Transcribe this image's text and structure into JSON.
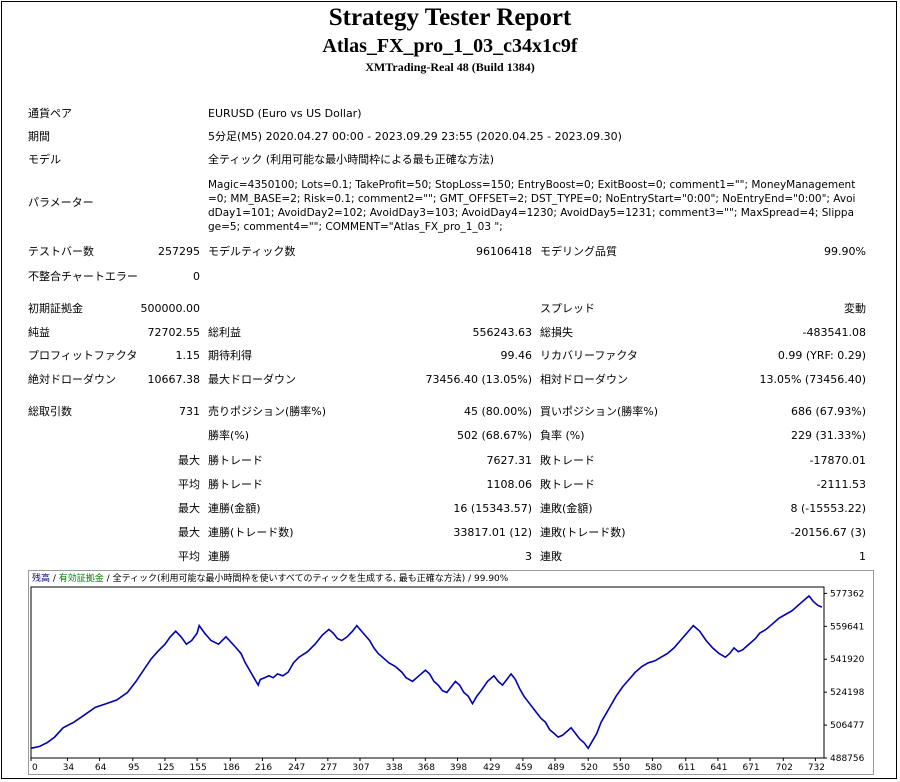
{
  "header": {
    "title": "Strategy Tester Report",
    "ea_name": "Atlas_FX_pro_1_03_c34x1c9f",
    "server": "XMTrading-Real 48 (Build 1384)"
  },
  "info": {
    "symbol_label": "通貨ペア",
    "symbol_value": "EURUSD (Euro vs US Dollar)",
    "period_label": "期間",
    "period_value": "5分足(M5) 2020.04.27 00:00 - 2023.09.29 23:55 (2020.04.25 - 2023.09.30)",
    "model_label": "モデル",
    "model_value": "全ティック (利用可能な最小時間枠による最も正確な方法)",
    "params_label": "パラメーター",
    "params_value": "Magic=4350100; Lots=0.1; TakeProfit=50; StopLoss=150; EntryBoost=0; ExitBoost=0; comment1=\"\"; MoneyManagement=0; MM_BASE=2; Risk=0.1; comment2=\"\"; GMT_OFFSET=2; DST_TYPE=0; NoEntryStart=\"0:00\"; NoEntryEnd=\"0:00\"; AvoidDay1=101; AvoidDay2=102; AvoidDay3=103; AvoidDay4=1230; AvoidDay5=1231; comment3=\"\"; MaxSpread=4; Slippage=5; comment4=\"\"; COMMENT=\"Atlas_FX_pro_1_03 \";"
  },
  "stats": {
    "bars_label": "テストバー数",
    "bars_value": "257295",
    "ticks_label": "モデルティック数",
    "ticks_value": "96106418",
    "quality_label": "モデリング品質",
    "quality_value": "99.90%",
    "mismatch_label": "不整合チャートエラー",
    "mismatch_value": "0",
    "deposit_label": "初期証拠金",
    "deposit_value": "500000.00",
    "spread_label": "スプレッド",
    "spread_value": "変動",
    "netprofit_label": "純益",
    "netprofit_value": "72702.55",
    "grossprofit_label": "総利益",
    "grossprofit_value": "556243.63",
    "grossloss_label": "総損失",
    "grossloss_value": "-483541.08",
    "pf_label": "プロフィットファクタ",
    "pf_value": "1.15",
    "payoff_label": "期待利得",
    "payoff_value": "99.46",
    "recovery_label": "リカバリーファクタ",
    "recovery_value": "0.99 (YRF: 0.29)",
    "absdd_label": "絶対ドローダウン",
    "absdd_value": "10667.38",
    "maxdd_label": "最大ドローダウン",
    "maxdd_value": "73456.40 (13.05%)",
    "reldd_label": "相対ドローダウン",
    "reldd_value": "13.05% (73456.40)",
    "trades_label": "総取引数",
    "trades_value": "731",
    "short_label": "売りポジション(勝率%)",
    "short_value": "45 (80.00%)",
    "long_label": "買いポジション(勝率%)",
    "long_value": "686 (67.93%)",
    "winrate_label": "勝率(%)",
    "winrate_value": "502 (68.67%)",
    "lossrate_label": "負率 (%)",
    "lossrate_value": "229 (31.33%)",
    "max_label": "最大",
    "avg_label": "平均",
    "largest_win_label": "勝トレード",
    "largest_win_value": "7627.31",
    "largest_loss_label": "敗トレード",
    "largest_loss_value": "-17870.01",
    "avg_win_label": "勝トレード",
    "avg_win_value": "1108.06",
    "avg_loss_label": "敗トレード",
    "avg_loss_value": "-2111.53",
    "max_consec_wins_money_label": "連勝(金額)",
    "max_consec_wins_money_value": "16 (15343.57)",
    "max_consec_losses_money_label": "連敗(金額)",
    "max_consec_losses_money_value": "8 (-15553.22)",
    "max_consec_wins_count_label": "連勝(トレード数)",
    "max_consec_wins_count_value": "33817.01 (12)",
    "max_consec_losses_count_label": "連敗(トレード数)",
    "max_consec_losses_count_value": "-20156.67 (3)",
    "avg_consec_wins_label": "連勝",
    "avg_consec_wins_value": "3",
    "avg_consec_losses_label": "連敗",
    "avg_consec_losses_value": "1"
  },
  "chart_data": {
    "type": "line",
    "legend": {
      "balance": "残高",
      "sep1": " / ",
      "equity": "有効証拠金",
      "sep2": " / ",
      "model": "全ティック(利用可能な最小時間枠を使いすべてのティックを生成する, 最も正確な方法)",
      "sep3": " / ",
      "quality": "99.90%"
    },
    "colors": {
      "balance": "#00008b",
      "equity": "#008000",
      "line": "#0000b4"
    },
    "x_ticks": [
      "0",
      "34",
      "64",
      "95",
      "125",
      "155",
      "186",
      "216",
      "247",
      "277",
      "307",
      "338",
      "368",
      "398",
      "429",
      "459",
      "489",
      "520",
      "550",
      "580",
      "611",
      "641",
      "671",
      "702",
      "732"
    ],
    "y_ticks": [
      "577362",
      "559641",
      "541920",
      "524198",
      "506477",
      "488756"
    ],
    "xlim": [
      0,
      740
    ],
    "ylim": [
      488756,
      580800
    ],
    "series": [
      {
        "x": [
          0,
          8,
          15,
          22,
          30,
          40,
          50,
          60,
          70,
          80,
          90,
          98,
          105,
          112,
          118,
          125,
          130,
          135,
          140,
          145,
          150,
          155,
          157,
          162,
          168,
          175,
          182,
          190,
          196,
          200,
          205,
          210,
          212,
          214,
          218,
          222,
          226,
          230,
          235,
          240,
          245,
          250,
          258,
          265,
          272,
          278,
          282,
          286,
          290,
          295,
          300,
          304,
          310,
          316,
          320,
          324,
          328,
          334,
          340,
          346,
          350,
          356,
          362,
          368,
          372,
          376,
          380,
          384,
          388,
          392,
          396,
          400,
          404,
          408,
          412,
          416,
          420,
          426,
          432,
          436,
          440,
          444,
          448,
          452,
          456,
          460,
          464,
          468,
          472,
          476,
          480,
          484,
          488,
          492,
          496,
          500,
          504,
          508,
          512,
          516,
          520,
          524,
          528,
          532,
          536,
          540,
          546,
          552,
          558,
          564,
          570,
          576,
          582,
          588,
          594,
          600,
          606,
          612,
          618,
          624,
          630,
          636,
          642,
          648,
          652,
          656,
          660,
          664,
          668,
          672,
          676,
          680,
          686,
          692,
          698,
          704,
          710,
          716,
          722,
          726,
          730,
          734,
          738
        ],
        "y": [
          494000,
          495000,
          497000,
          500000,
          505000,
          508000,
          512000,
          516000,
          518000,
          520000,
          524000,
          530000,
          536000,
          542000,
          546000,
          550000,
          554000,
          557000,
          554000,
          550000,
          552000,
          556000,
          560000,
          556000,
          552000,
          550000,
          554000,
          549000,
          545000,
          540000,
          535000,
          530000,
          528000,
          531000,
          532000,
          533000,
          532000,
          534000,
          533000,
          535000,
          540000,
          543000,
          546000,
          550000,
          555000,
          558000,
          556000,
          553000,
          552000,
          554000,
          557000,
          560000,
          556000,
          552000,
          548000,
          545000,
          543000,
          540000,
          538000,
          535000,
          532000,
          530000,
          533000,
          536000,
          534000,
          530000,
          528000,
          525000,
          524000,
          527000,
          530000,
          528000,
          524000,
          522000,
          518000,
          522000,
          525000,
          530000,
          533000,
          530000,
          528000,
          531000,
          534000,
          531000,
          526000,
          522000,
          519000,
          516000,
          513000,
          510000,
          508000,
          504000,
          502000,
          500000,
          501000,
          503000,
          505000,
          502000,
          499000,
          497000,
          494000,
          498000,
          502000,
          508000,
          512000,
          516000,
          522000,
          527000,
          531000,
          535000,
          538000,
          540000,
          541000,
          543000,
          545000,
          548000,
          552000,
          556000,
          560000,
          557000,
          552000,
          548000,
          545000,
          543000,
          545000,
          548000,
          546000,
          547000,
          549000,
          551000,
          553000,
          556000,
          558000,
          561000,
          564000,
          566000,
          568000,
          571000,
          574000,
          576000,
          573000,
          571000,
          570000
        ]
      }
    ]
  }
}
